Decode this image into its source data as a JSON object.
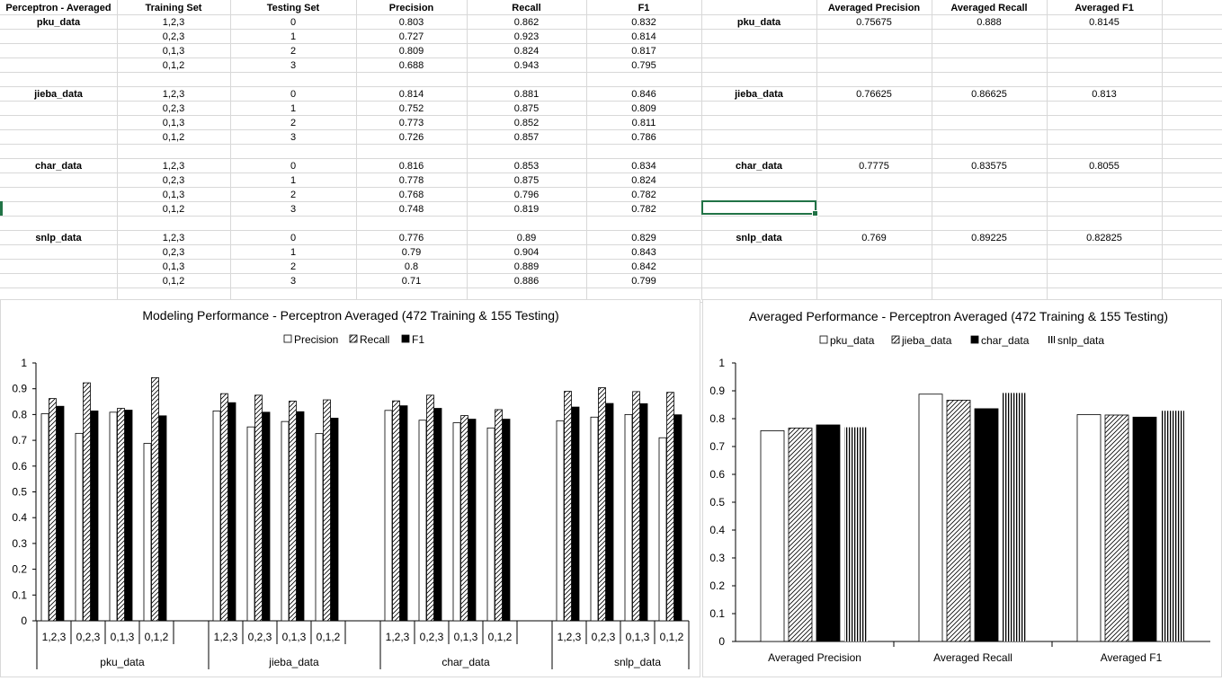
{
  "sheet": {
    "headers": [
      "Perceptron - Averaged",
      "Training Set",
      "Testing Set",
      "Precision",
      "Recall",
      "F1",
      "",
      "Averaged Precision",
      "Averaged Recall",
      "Averaged F1"
    ],
    "groups": [
      {
        "name": "pku_data",
        "rows": [
          {
            "train": "1,2,3",
            "test": "0",
            "precision": "0.803",
            "recall": "0.862",
            "f1": "0.832"
          },
          {
            "train": "0,2,3",
            "test": "1",
            "precision": "0.727",
            "recall": "0.923",
            "f1": "0.814"
          },
          {
            "train": "0,1,3",
            "test": "2",
            "precision": "0.809",
            "recall": "0.824",
            "f1": "0.817"
          },
          {
            "train": "0,1,2",
            "test": "3",
            "precision": "0.688",
            "recall": "0.943",
            "f1": "0.795"
          }
        ],
        "avg": {
          "name": "pku_data",
          "precision": "0.75675",
          "recall": "0.888",
          "f1": "0.8145"
        }
      },
      {
        "name": "jieba_data",
        "rows": [
          {
            "train": "1,2,3",
            "test": "0",
            "precision": "0.814",
            "recall": "0.881",
            "f1": "0.846"
          },
          {
            "train": "0,2,3",
            "test": "1",
            "precision": "0.752",
            "recall": "0.875",
            "f1": "0.809"
          },
          {
            "train": "0,1,3",
            "test": "2",
            "precision": "0.773",
            "recall": "0.852",
            "f1": "0.811"
          },
          {
            "train": "0,1,2",
            "test": "3",
            "precision": "0.726",
            "recall": "0.857",
            "f1": "0.786"
          }
        ],
        "avg": {
          "name": "jieba_data",
          "precision": "0.76625",
          "recall": "0.86625",
          "f1": "0.813"
        }
      },
      {
        "name": "char_data",
        "rows": [
          {
            "train": "1,2,3",
            "test": "0",
            "precision": "0.816",
            "recall": "0.853",
            "f1": "0.834"
          },
          {
            "train": "0,2,3",
            "test": "1",
            "precision": "0.778",
            "recall": "0.875",
            "f1": "0.824"
          },
          {
            "train": "0,1,3",
            "test": "2",
            "precision": "0.768",
            "recall": "0.796",
            "f1": "0.782"
          },
          {
            "train": "0,1,2",
            "test": "3",
            "precision": "0.748",
            "recall": "0.819",
            "f1": "0.782"
          }
        ],
        "avg": {
          "name": "char_data",
          "precision": "0.7775",
          "recall": "0.83575",
          "f1": "0.8055"
        }
      },
      {
        "name": "snlp_data",
        "rows": [
          {
            "train": "1,2,3",
            "test": "0",
            "precision": "0.776",
            "recall": "0.89",
            "f1": "0.829"
          },
          {
            "train": "0,2,3",
            "test": "1",
            "precision": "0.79",
            "recall": "0.904",
            "f1": "0.843"
          },
          {
            "train": "0,1,3",
            "test": "2",
            "precision": "0.8",
            "recall": "0.889",
            "f1": "0.842"
          },
          {
            "train": "0,1,2",
            "test": "3",
            "precision": "0.71",
            "recall": "0.886",
            "f1": "0.799"
          }
        ],
        "avg": {
          "name": "snlp_data",
          "precision": "0.769",
          "recall": "0.89225",
          "f1": "0.82825"
        }
      }
    ]
  },
  "colors": {
    "selection": "#217346",
    "gridline": "#d8d8d8",
    "bar_edge": "#000000"
  },
  "chart_data": [
    {
      "type": "bar",
      "title": "Modeling Performance - Perceptron Averaged (472 Training & 155 Testing)",
      "legend_position": "top",
      "xlabel": "",
      "ylabel": "",
      "ylim": [
        0,
        1
      ],
      "yticks": [
        "0",
        "0.1",
        "0.2",
        "0.3",
        "0.4",
        "0.5",
        "0.6",
        "0.7",
        "0.8",
        "0.9",
        "1"
      ],
      "groups": [
        "pku_data",
        "jieba_data",
        "char_data",
        "snlp_data"
      ],
      "categories": [
        "1,2,3",
        "0,2,3",
        "0,1,3",
        "0,1,2"
      ],
      "series": [
        {
          "name": "Precision",
          "pattern": "white",
          "values": [
            [
              0.803,
              0.727,
              0.809,
              0.688
            ],
            [
              0.814,
              0.752,
              0.773,
              0.726
            ],
            [
              0.816,
              0.778,
              0.768,
              0.748
            ],
            [
              0.776,
              0.79,
              0.8,
              0.71
            ]
          ]
        },
        {
          "name": "Recall",
          "pattern": "diagonal-hatch",
          "values": [
            [
              0.862,
              0.923,
              0.824,
              0.943
            ],
            [
              0.881,
              0.875,
              0.852,
              0.857
            ],
            [
              0.853,
              0.875,
              0.796,
              0.819
            ],
            [
              0.89,
              0.904,
              0.889,
              0.886
            ]
          ]
        },
        {
          "name": "F1",
          "pattern": "black",
          "values": [
            [
              0.832,
              0.814,
              0.817,
              0.795
            ],
            [
              0.846,
              0.809,
              0.811,
              0.786
            ],
            [
              0.834,
              0.824,
              0.782,
              0.782
            ],
            [
              0.829,
              0.843,
              0.842,
              0.799
            ]
          ]
        }
      ],
      "grid": false
    },
    {
      "type": "bar",
      "title": "Averaged Performance - Perceptron Averaged (472 Training & 155 Testing)",
      "legend_position": "top",
      "xlabel": "",
      "ylabel": "",
      "ylim": [
        0,
        1
      ],
      "yticks": [
        "0",
        "0.1",
        "0.2",
        "0.3",
        "0.4",
        "0.5",
        "0.6",
        "0.7",
        "0.8",
        "0.9",
        "1"
      ],
      "categories": [
        "Averaged Precision",
        "Averaged Recall",
        "Averaged F1"
      ],
      "series": [
        {
          "name": "pku_data",
          "pattern": "white",
          "values": [
            0.75675,
            0.888,
            0.8145
          ]
        },
        {
          "name": "jieba_data",
          "pattern": "diagonal-hatch",
          "values": [
            0.76625,
            0.86625,
            0.813
          ]
        },
        {
          "name": "char_data",
          "pattern": "black",
          "values": [
            0.7775,
            0.83575,
            0.8055
          ]
        },
        {
          "name": "snlp_data",
          "pattern": "vertical-lines",
          "values": [
            0.769,
            0.89225,
            0.82825
          ]
        }
      ],
      "grid": false
    }
  ]
}
